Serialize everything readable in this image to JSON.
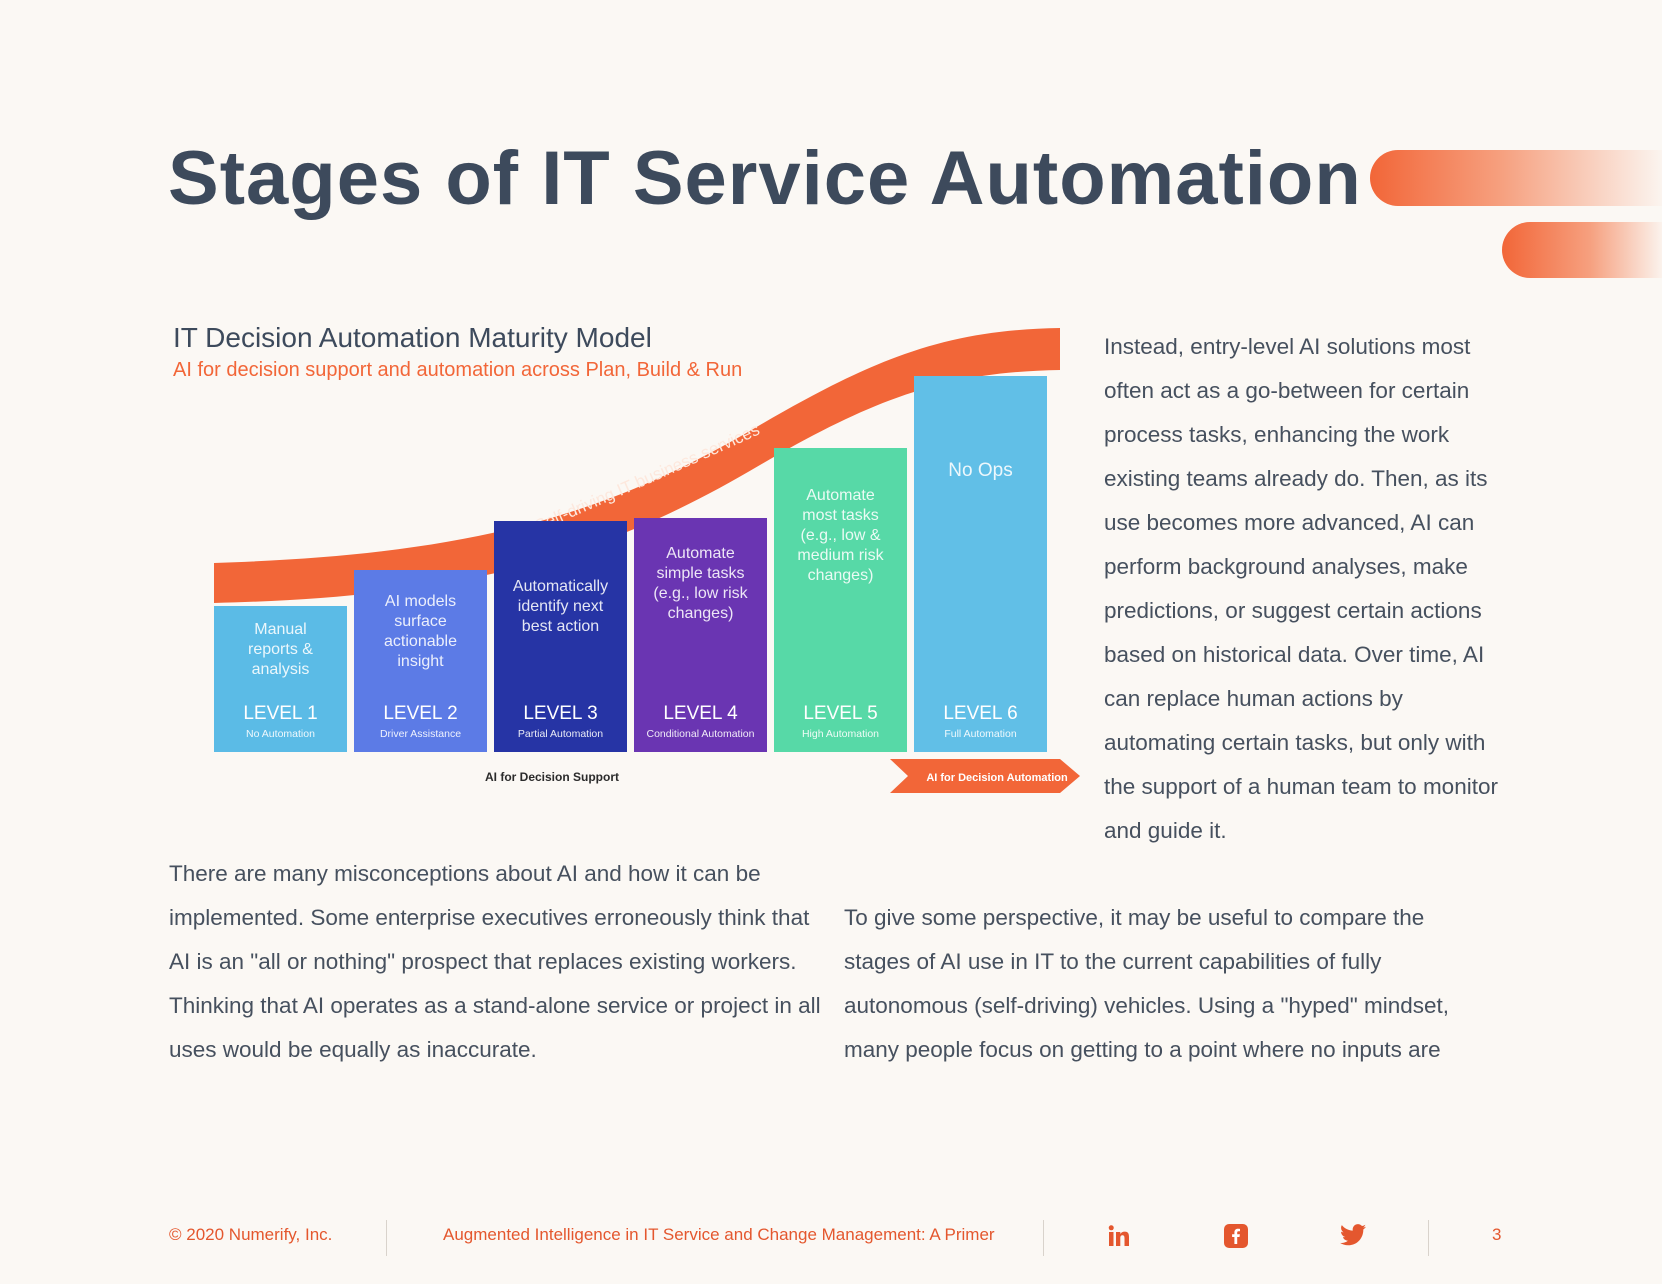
{
  "page": {
    "title": "Stages of IT Service Automation"
  },
  "model": {
    "title": "IT Decision Automation Maturity Model",
    "subtitle": "AI for decision support and automation across Plan, Build & Run",
    "curve_label": "Self-driving IT business services",
    "levels": [
      {
        "level": "LEVEL 1",
        "name": "No Automation",
        "desc": [
          "Manual",
          "reports &",
          "analysis"
        ],
        "color": "#5bbbe6"
      },
      {
        "level": "LEVEL 2",
        "name": "Driver Assistance",
        "desc": [
          "AI models",
          "surface",
          "actionable",
          "insight"
        ],
        "color": "#5c7be6"
      },
      {
        "level": "LEVEL 3",
        "name": "Partial Automation",
        "desc": [
          "Automatically",
          "identify next",
          "best action"
        ],
        "color": "#2634a5"
      },
      {
        "level": "LEVEL 4",
        "name": "Conditional Automation",
        "desc": [
          "Automate",
          "simple tasks",
          "(e.g., low risk",
          "changes)"
        ],
        "color": "#6a35b2"
      },
      {
        "level": "LEVEL 5",
        "name": "High Automation",
        "desc": [
          "Automate",
          "most tasks",
          "(e.g., low &",
          "medium risk",
          "changes)"
        ],
        "color": "#57d9a7"
      },
      {
        "level": "LEVEL 6",
        "name": "Full Automation",
        "desc": [
          "No Ops"
        ],
        "color": "#61bfe7"
      }
    ],
    "support_label": "AI for Decision Support",
    "automation_label": "AI for Decision Automation",
    "colors": {
      "accent": "#f26638",
      "heading": "#3d4a5c"
    }
  },
  "body": {
    "right_paragraph": "Instead, entry-level AI solutions most often act as a go-between for certain process tasks, enhancing the work existing teams already do. Then, as its use becomes more advanced, AI can perform background analyses, make predictions, or suggest certain actions based on historical data. Over time, AI can replace human actions by automating certain tasks, but only with the support of a human team to monitor and guide it.",
    "left_paragraph": "There are many misconceptions about AI and how it can be implemented. Some enterprise executives erroneously think that AI is an \"all or nothing\" prospect that replaces existing workers. Thinking that AI operates as a stand-alone service or project in all uses would be equally as inaccurate.",
    "bottom_right_paragraph": "To give some perspective, it may be useful to compare the stages of AI use in IT to the current capabilities of fully autonomous (self-driving) vehicles. Using a \"hyped\" mindset, many people focus on getting to a point where no inputs are"
  },
  "footer": {
    "copyright": "© 2020 Numerify, Inc.",
    "doc_title": "Augmented Intelligence in IT Service and Change Management: A Primer",
    "page_number": "3",
    "social": [
      {
        "icon": "linkedin-icon",
        "glyph": "in"
      },
      {
        "icon": "facebook-icon",
        "glyph": "f"
      },
      {
        "icon": "twitter-icon",
        "glyph": ""
      }
    ]
  }
}
